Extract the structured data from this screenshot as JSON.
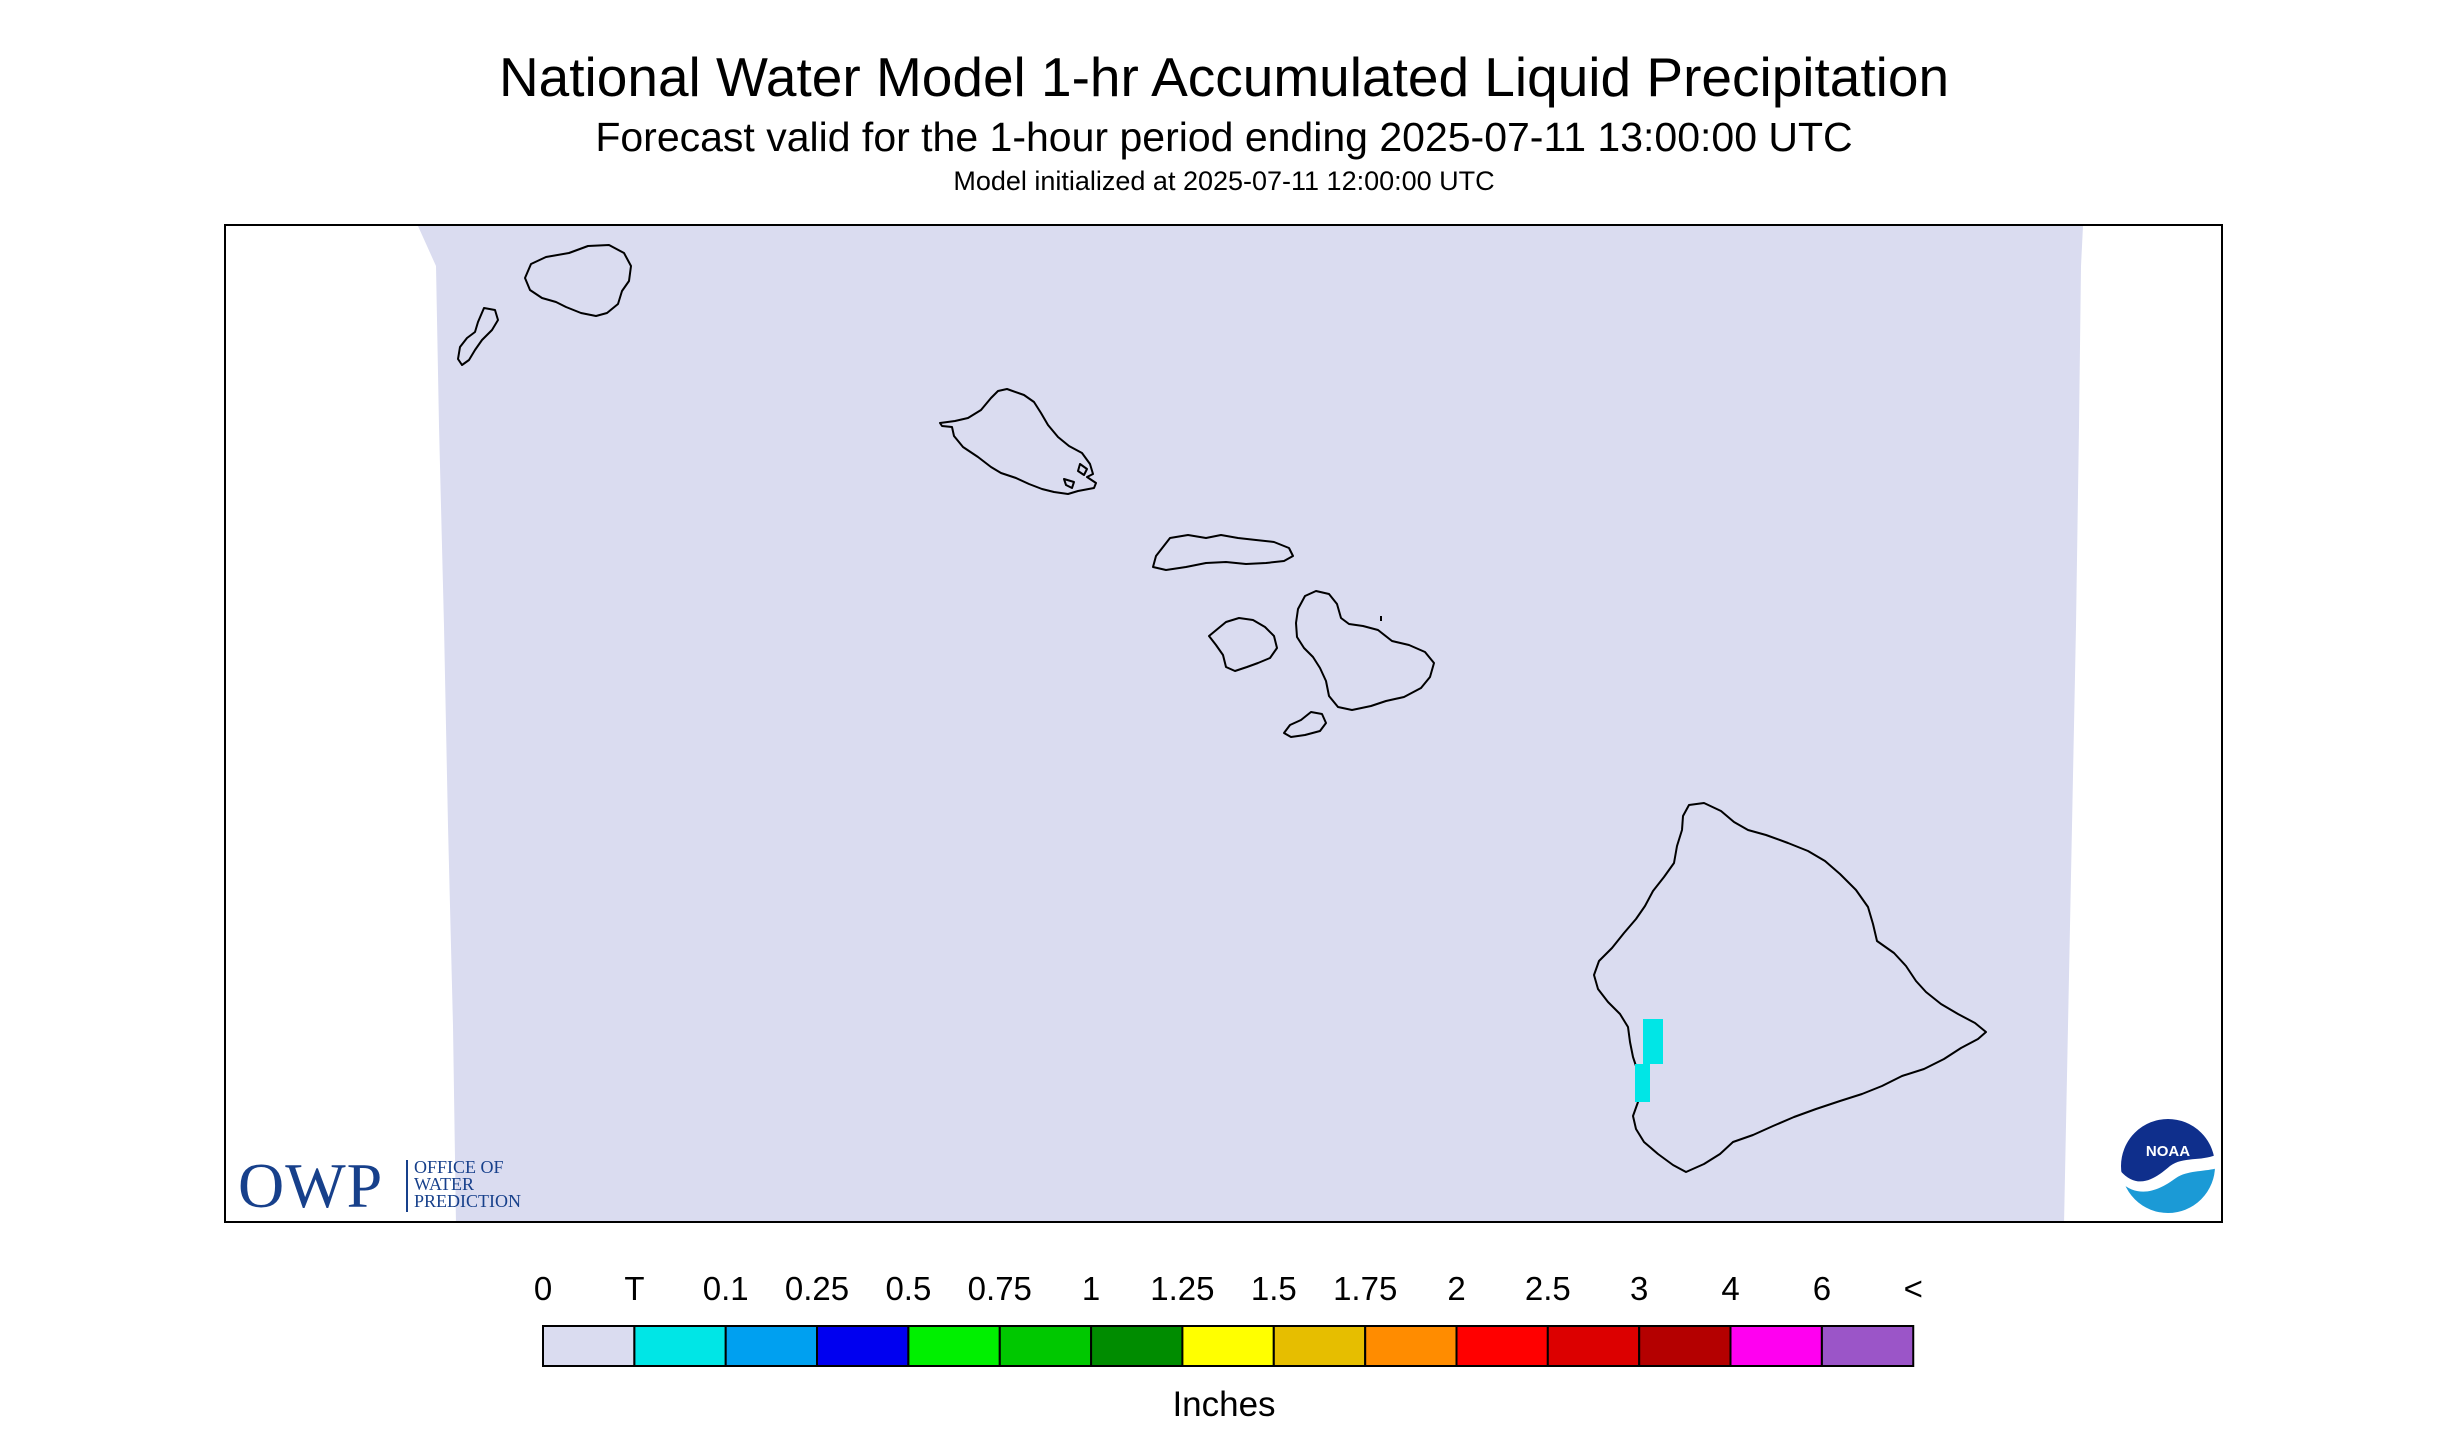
{
  "header": {
    "title": "National Water Model 1-hr Accumulated Liquid Precipitation",
    "subtitle": "Forecast valid for the 1-hour period ending 2025-07-11 13:00:00 UTC",
    "init_line": "Model initialized at 2025-07-11 12:00:00 UTC"
  },
  "map": {
    "region": "Hawaii",
    "background_color": "#dadcf0",
    "coastline_color": "#000000",
    "islands": [
      "Niihau",
      "Kauai",
      "Oahu",
      "Molokai",
      "Lanai",
      "Maui",
      "Kahoolawe",
      "Hawaii"
    ],
    "precip_cells": [
      {
        "location": "west coast of Hawaii island (Kona)",
        "category": "T",
        "color": "#00e6e6"
      }
    ]
  },
  "logos": {
    "owp": {
      "acronym": "OWP",
      "line1": "OFFICE OF",
      "line2": "WATER",
      "line3": "PREDICTION"
    },
    "noaa": {
      "text": "NOAA"
    }
  },
  "legend": {
    "title": "Inches",
    "labels": [
      "0",
      "T",
      "0.1",
      "0.25",
      "0.5",
      "0.75",
      "1",
      "1.25",
      "1.5",
      "1.75",
      "2",
      "2.5",
      "3",
      "4",
      "6",
      "<"
    ],
    "colors": [
      "#dadcf0",
      "#00e6e6",
      "#00a0f0",
      "#0000f0",
      "#00f000",
      "#00c800",
      "#008c00",
      "#ffff00",
      "#e6be00",
      "#ff8c00",
      "#ff0000",
      "#dc0000",
      "#b40000",
      "#ff00f0",
      "#9b55c8"
    ]
  }
}
